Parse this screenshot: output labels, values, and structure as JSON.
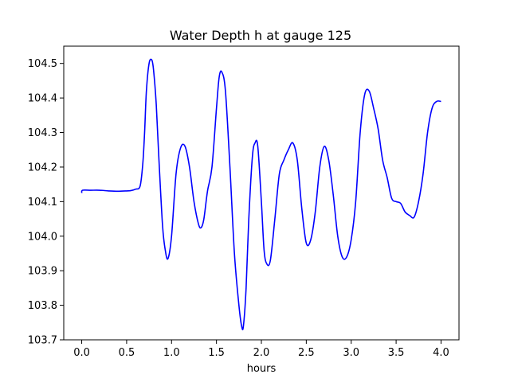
{
  "chart_data": {
    "type": "line",
    "title": "Water Depth h at gauge 125",
    "xlabel": "hours",
    "ylabel": "",
    "xlim": [
      -0.2,
      4.2
    ],
    "ylim": [
      103.7,
      104.55
    ],
    "xticks": [
      0.0,
      0.5,
      1.0,
      1.5,
      2.0,
      2.5,
      3.0,
      3.5,
      4.0
    ],
    "xtick_labels": [
      "0.0",
      "0.5",
      "1.0",
      "1.5",
      "2.0",
      "2.5",
      "3.0",
      "3.5",
      "4.0"
    ],
    "yticks": [
      103.7,
      103.8,
      103.9,
      104.0,
      104.1,
      104.2,
      104.3,
      104.4,
      104.5
    ],
    "ytick_labels": [
      "103.7",
      "103.8",
      "103.9",
      "104.0",
      "104.1",
      "104.2",
      "104.3",
      "104.4",
      "104.5"
    ],
    "grid": false,
    "legend": "none",
    "series": [
      {
        "color": "#0000ff",
        "x": [
          0.0,
          0.01,
          0.1,
          0.2,
          0.3,
          0.4,
          0.5,
          0.55,
          0.6,
          0.65,
          0.68,
          0.7,
          0.72,
          0.75,
          0.78,
          0.8,
          0.83,
          0.86,
          0.9,
          0.93,
          0.96,
          1.0,
          1.05,
          1.1,
          1.15,
          1.2,
          1.25,
          1.3,
          1.33,
          1.36,
          1.4,
          1.45,
          1.5,
          1.53,
          1.56,
          1.6,
          1.65,
          1.7,
          1.75,
          1.78,
          1.8,
          1.83,
          1.86,
          1.9,
          1.93,
          1.96,
          2.0,
          2.03,
          2.06,
          2.1,
          2.15,
          2.2,
          2.25,
          2.3,
          2.35,
          2.4,
          2.45,
          2.5,
          2.55,
          2.6,
          2.65,
          2.7,
          2.75,
          2.8,
          2.85,
          2.9,
          2.95,
          3.0,
          3.05,
          3.1,
          3.15,
          3.2,
          3.25,
          3.3,
          3.35,
          3.4,
          3.45,
          3.5,
          3.55,
          3.6,
          3.65,
          3.7,
          3.75,
          3.8,
          3.85,
          3.9,
          3.95,
          4.0
        ],
        "y": [
          104.125,
          104.133,
          104.133,
          104.133,
          104.131,
          104.13,
          104.131,
          104.132,
          104.136,
          104.145,
          104.21,
          104.3,
          104.42,
          104.5,
          104.51,
          104.48,
          104.38,
          104.22,
          104.03,
          103.96,
          103.935,
          104.0,
          104.18,
          104.255,
          104.26,
          104.2,
          104.1,
          104.035,
          104.025,
          104.05,
          104.13,
          104.2,
          104.37,
          104.46,
          104.475,
          104.42,
          104.2,
          103.95,
          103.8,
          103.74,
          103.74,
          103.85,
          104.05,
          104.23,
          104.27,
          104.26,
          104.1,
          103.96,
          103.92,
          103.93,
          104.05,
          104.18,
          104.22,
          104.25,
          104.27,
          104.22,
          104.08,
          103.98,
          103.99,
          104.07,
          104.2,
          104.26,
          104.22,
          104.12,
          104.0,
          103.94,
          103.94,
          103.99,
          104.1,
          104.3,
          104.41,
          104.42,
          104.37,
          104.31,
          104.22,
          104.17,
          104.11,
          104.1,
          104.095,
          104.07,
          104.06,
          104.055,
          104.1,
          104.18,
          104.3,
          104.37,
          104.39,
          104.39
        ]
      }
    ]
  }
}
